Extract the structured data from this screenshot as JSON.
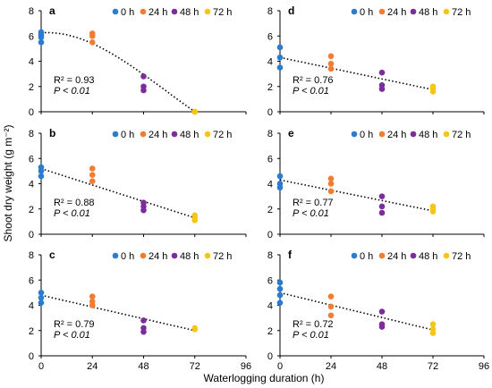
{
  "figure": {
    "ylabel": "Shoot dry weight (g m⁻²)",
    "xlabel": "Waterlogging duration (h)"
  },
  "colors": {
    "0 h": "#2b7bd0",
    "24 h": "#f47c30",
    "48 h": "#7b2d9b",
    "72 h": "#f5c518",
    "trend": "#000000"
  },
  "chart_data": [
    {
      "panel": "a",
      "type": "scatter",
      "trend": "polynomial",
      "legend": [
        "0 h",
        "24 h",
        "48 h",
        "72 h"
      ],
      "ylim": [
        0,
        8
      ],
      "yticks": [
        0,
        2,
        4,
        6,
        8
      ],
      "xlim": [
        0,
        96
      ],
      "xticks": [
        0,
        24,
        48,
        72,
        96
      ],
      "xtick_labels_shown": false,
      "series": [
        {
          "name": "0 h",
          "x": [
            0,
            0,
            0,
            0
          ],
          "y": [
            6.3,
            6.1,
            5.9,
            5.5
          ]
        },
        {
          "name": "24 h",
          "x": [
            24,
            24,
            24
          ],
          "y": [
            6.2,
            6.0,
            5.5
          ]
        },
        {
          "name": "48 h",
          "x": [
            48,
            48,
            48
          ],
          "y": [
            2.8,
            2.0,
            1.7
          ]
        },
        {
          "name": "72 h",
          "x": [
            72,
            72,
            72
          ],
          "y": [
            0,
            0,
            0
          ]
        }
      ],
      "trend_y": [
        6.25,
        5.4,
        2.95,
        0.0
      ],
      "r2": "R² = 0.93",
      "p": "P < 0.01"
    },
    {
      "panel": "b",
      "type": "scatter",
      "trend": "linear",
      "legend": [
        "0 h",
        "24 h",
        "48 h",
        "72 h"
      ],
      "ylim": [
        0,
        8
      ],
      "yticks": [
        0,
        2,
        4,
        6,
        8
      ],
      "xlim": [
        0,
        96
      ],
      "xticks": [
        0,
        24,
        48,
        72,
        96
      ],
      "xtick_labels_shown": false,
      "series": [
        {
          "name": "0 h",
          "x": [
            0,
            0,
            0
          ],
          "y": [
            5.3,
            5.0,
            4.6
          ]
        },
        {
          "name": "24 h",
          "x": [
            24,
            24,
            24
          ],
          "y": [
            5.2,
            4.7,
            4.2
          ]
        },
        {
          "name": "48 h",
          "x": [
            48,
            48,
            48
          ],
          "y": [
            2.5,
            2.2,
            1.9
          ]
        },
        {
          "name": "72 h",
          "x": [
            72,
            72,
            72
          ],
          "y": [
            1.5,
            1.3,
            1.1
          ]
        }
      ],
      "trend_y": [
        5.2,
        4.0,
        2.65,
        1.3
      ],
      "r2": "R² = 0.88",
      "p": "P < 0.01"
    },
    {
      "panel": "c",
      "type": "scatter",
      "trend": "linear",
      "legend": [
        "0 h",
        "24 h",
        "48 h",
        "72 h"
      ],
      "ylim": [
        0,
        8
      ],
      "yticks": [
        0,
        2,
        4,
        6,
        8
      ],
      "xlim": [
        0,
        96
      ],
      "xticks": [
        0,
        24,
        48,
        72,
        96
      ],
      "xtick_labels_shown": true,
      "series": [
        {
          "name": "0 h",
          "x": [
            0,
            0,
            0
          ],
          "y": [
            5.0,
            4.6,
            4.2
          ]
        },
        {
          "name": "24 h",
          "x": [
            24,
            24,
            24
          ],
          "y": [
            4.7,
            4.3,
            4.0
          ]
        },
        {
          "name": "48 h",
          "x": [
            48,
            48,
            48
          ],
          "y": [
            2.8,
            2.2,
            1.9
          ]
        },
        {
          "name": "72 h",
          "x": [
            72,
            72
          ],
          "y": [
            2.2,
            2.1
          ]
        }
      ],
      "trend_y": [
        4.8,
        3.85,
        2.95,
        2.0
      ],
      "r2": "R² = 0.79",
      "p": "P < 0.01"
    },
    {
      "panel": "d",
      "type": "scatter",
      "trend": "linear",
      "legend": [
        "0 h",
        "24 h",
        "48 h",
        "72 h"
      ],
      "ylim": [
        0,
        8
      ],
      "yticks": [
        0,
        2,
        4,
        6,
        8
      ],
      "xlim": [
        0,
        96
      ],
      "xticks": [
        0,
        24,
        48,
        72,
        96
      ],
      "xtick_labels_shown": false,
      "series": [
        {
          "name": "0 h",
          "x": [
            0,
            0,
            0
          ],
          "y": [
            5.1,
            4.3,
            3.5
          ]
        },
        {
          "name": "24 h",
          "x": [
            24,
            24,
            24
          ],
          "y": [
            4.4,
            3.8,
            3.4
          ]
        },
        {
          "name": "48 h",
          "x": [
            48,
            48,
            48
          ],
          "y": [
            3.1,
            2.1,
            1.8
          ]
        },
        {
          "name": "72 h",
          "x": [
            72,
            72,
            72
          ],
          "y": [
            2.0,
            1.8,
            1.6
          ]
        }
      ],
      "trend_y": [
        4.3,
        3.45,
        2.6,
        1.75
      ],
      "r2": "R² = 0.76",
      "p": "P < 0.01"
    },
    {
      "panel": "e",
      "type": "scatter",
      "trend": "linear",
      "legend": [
        "0 h",
        "24 h",
        "48 h",
        "72 h"
      ],
      "ylim": [
        0,
        8
      ],
      "yticks": [
        0,
        2,
        4,
        6,
        8
      ],
      "xlim": [
        0,
        96
      ],
      "xticks": [
        0,
        24,
        48,
        72,
        96
      ],
      "xtick_labels_shown": false,
      "series": [
        {
          "name": "0 h",
          "x": [
            0,
            0,
            0
          ],
          "y": [
            4.6,
            4.0,
            3.7
          ]
        },
        {
          "name": "24 h",
          "x": [
            24,
            24,
            24
          ],
          "y": [
            4.4,
            4.0,
            3.4
          ]
        },
        {
          "name": "48 h",
          "x": [
            48,
            48,
            48
          ],
          "y": [
            3.0,
            2.2,
            1.7
          ]
        },
        {
          "name": "72 h",
          "x": [
            72,
            72,
            72
          ],
          "y": [
            2.2,
            2.0,
            1.8
          ]
        }
      ],
      "trend_y": [
        4.3,
        3.5,
        2.65,
        1.85
      ],
      "r2": "R² = 0.77",
      "p": "P < 0.01"
    },
    {
      "panel": "f",
      "type": "scatter",
      "trend": "linear",
      "legend": [
        "0 h",
        "24 h",
        "48 h",
        "72 h"
      ],
      "ylim": [
        0,
        8
      ],
      "yticks": [
        0,
        2,
        4,
        6,
        8
      ],
      "xlim": [
        0,
        96
      ],
      "xticks": [
        0,
        24,
        48,
        72,
        96
      ],
      "xtick_labels_shown": true,
      "series": [
        {
          "name": "0 h",
          "x": [
            0,
            0,
            0,
            0
          ],
          "y": [
            5.8,
            5.3,
            4.8,
            4.2
          ]
        },
        {
          "name": "24 h",
          "x": [
            24,
            24,
            24
          ],
          "y": [
            4.7,
            3.9,
            3.2
          ]
        },
        {
          "name": "48 h",
          "x": [
            48,
            48,
            48
          ],
          "y": [
            3.5,
            2.5,
            2.3
          ]
        },
        {
          "name": "72 h",
          "x": [
            72,
            72,
            72
          ],
          "y": [
            2.5,
            2.1,
            1.8
          ]
        }
      ],
      "trend_y": [
        5.0,
        4.0,
        3.0,
        2.05
      ],
      "r2": "R² = 0.72",
      "p": "P < 0.01"
    }
  ]
}
